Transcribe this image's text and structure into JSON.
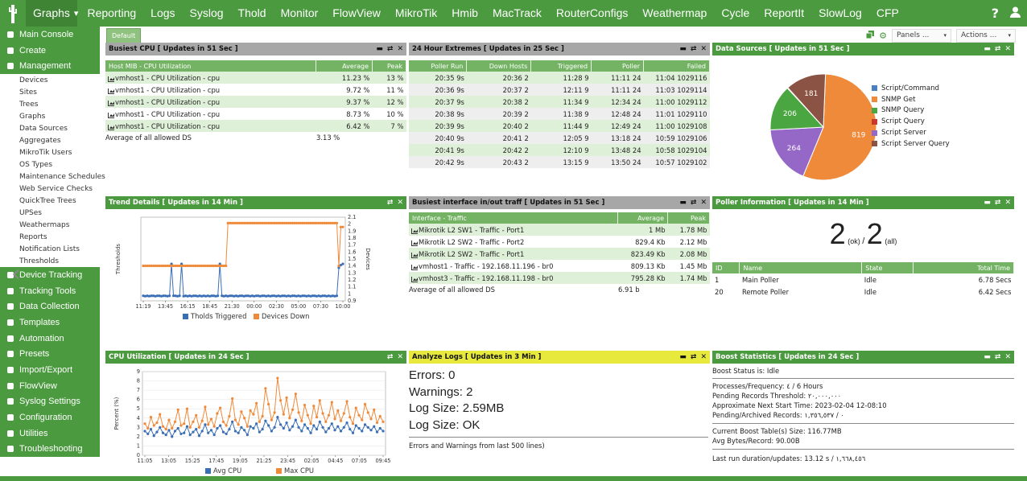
{
  "topnav": {
    "items": [
      "Graphs",
      "Reporting",
      "Logs",
      "Syslog",
      "Thold",
      "Monitor",
      "FlowView",
      "MikroTik",
      "Hmib",
      "MacTrack",
      "RouterConfigs",
      "Weathermap",
      "Cycle",
      "ReportIt",
      "SlowLog",
      "CFP"
    ],
    "help": "?"
  },
  "sidebar": {
    "top": [
      {
        "label": "Main Console",
        "icon": "home-icon"
      },
      {
        "label": "Create",
        "icon": "plus-icon"
      },
      {
        "label": "Management",
        "icon": "folder-icon"
      }
    ],
    "management_items": [
      "Devices",
      "Sites",
      "Trees",
      "Graphs",
      "Data Sources",
      "Aggregates",
      "MikroTik Users",
      "OS Types",
      "Maintenance Schedules",
      "Web Service Checks",
      "QuickTree Trees",
      "UPSes",
      "Weathermaps",
      "Reports",
      "Notification Lists",
      "Thresholds"
    ],
    "bottom": [
      {
        "label": "Device Tracking",
        "icon": "gear-icon"
      },
      {
        "label": "Tracking Tools",
        "icon": "wrench-icon"
      },
      {
        "label": "Data Collection",
        "icon": "database-icon"
      },
      {
        "label": "Templates",
        "icon": "template-icon"
      },
      {
        "label": "Automation",
        "icon": "robot-icon"
      },
      {
        "label": "Presets",
        "icon": "list-icon"
      },
      {
        "label": "Import/Export",
        "icon": "swap-icon"
      },
      {
        "label": "FlowView",
        "icon": "flow-icon"
      },
      {
        "label": "Syslog Settings",
        "icon": "gear-icon"
      },
      {
        "label": "Configuration",
        "icon": "sliders-icon"
      },
      {
        "label": "Utilities",
        "icon": "tools-icon"
      },
      {
        "label": "Troubleshooting",
        "icon": "bug-icon"
      }
    ]
  },
  "tab": {
    "label": "Default"
  },
  "toolbar": {
    "panels": "Panels ...",
    "actions": "Actions ..."
  },
  "cpu_panel": {
    "title": "Busiest CPU [ Updates in 51 Sec ]",
    "headers": [
      "Host MIB - CPU Utilization",
      "Average",
      "Peak"
    ],
    "rows": [
      [
        "vmhost1 - CPU Utilization - cpu",
        "11.23 %",
        "13 %"
      ],
      [
        "vmhost1 - CPU Utilization - cpu",
        "9.72 %",
        "11 %"
      ],
      [
        "vmhost1 - CPU Utilization - cpu",
        "9.37 %",
        "12 %"
      ],
      [
        "vmhost1 - CPU Utilization - cpu",
        "8.73 %",
        "10 %"
      ],
      [
        "vmhost1 - CPU Utilization - cpu",
        "6.42 %",
        "7 %"
      ]
    ],
    "avg_label": "Average of all allowed DS",
    "avg_value": "3.13 %"
  },
  "extremes_panel": {
    "title": "24 Hour Extremes [ Updates in 25 Sec ]",
    "headers": [
      "Poller Run",
      "Down Hosts",
      "Triggered",
      "Poller",
      "Failed"
    ],
    "rows": [
      [
        "20:35 9s",
        "20:36 2",
        "11:28 9",
        "11:11 24",
        "11:04 1029116"
      ],
      [
        "20:36 9s",
        "20:37 2",
        "12:11 9",
        "11:11 24",
        "11:03 1029114"
      ],
      [
        "20:37 9s",
        "20:38 2",
        "11:34 9",
        "12:34 24",
        "11:00 1029112"
      ],
      [
        "20:38 9s",
        "20:39 2",
        "11:38 9",
        "12:48 24",
        "11:01 1029110"
      ],
      [
        "20:39 9s",
        "20:40 2",
        "11:44 9",
        "12:49 24",
        "11:00 1029108"
      ],
      [
        "20:40 9s",
        "20:41 2",
        "12:05 9",
        "13:18 24",
        "10:59 1029106"
      ],
      [
        "20:41 9s",
        "20:42 2",
        "12:10 9",
        "13:48 24",
        "10:58 1029104"
      ],
      [
        "20:42 9s",
        "20:43 2",
        "13:15 9",
        "13:50 24",
        "10:57 1029102"
      ]
    ]
  },
  "datasources_panel": {
    "title": "Data Sources [ Updates in 51 Sec ]",
    "legend": [
      {
        "label": "Script/Command",
        "color": "#4a7fc1"
      },
      {
        "label": "SNMP Get",
        "color": "#ef8a3a"
      },
      {
        "label": "SNMP Query",
        "color": "#4aa640"
      },
      {
        "label": "Script Query",
        "color": "#c8382d"
      },
      {
        "label": "Script Server",
        "color": "#9567c6"
      },
      {
        "label": "Script Server Query",
        "color": "#8b5344"
      }
    ]
  },
  "trend_panel": {
    "title": "Trend Details [ Updates in 14 Min ]"
  },
  "interface_panel": {
    "title": "Busiest interface in/out traff [ Updates in 51 Sec ]",
    "headers": [
      "Interface - Traffic",
      "Average",
      "Peak"
    ],
    "rows": [
      [
        "Mikrotik L2 SW1 - Traffic - Port1",
        "1 Mb",
        "1.78 Mb"
      ],
      [
        "Mikrotik L2 SW2 - Traffic - Port2",
        "829.4 Kb",
        "2.12 Mb"
      ],
      [
        "Mikrotik L2 SW2 - Traffic - Port1",
        "823.49 Kb",
        "2.08 Mb"
      ],
      [
        "vmhost1 - Traffic - 192.168.11.196 - br0",
        "809.13 Kb",
        "1.45 Mb"
      ],
      [
        "vmhost3 - Traffic - 192.168.11.198 - br0",
        "795.28 Kb",
        "1.74 Mb"
      ]
    ],
    "avg_label": "Average of all allowed DS",
    "avg_value": "6.91 b"
  },
  "poller_panel": {
    "title": "Poller Information [ Updates in 14 Min ]",
    "ok_count": "2",
    "ok_label": "(ok)",
    "slash": "/",
    "all_count": "2",
    "all_label": "(all)",
    "headers": [
      "ID",
      "Name",
      "State",
      "Total Time"
    ],
    "rows": [
      [
        "1",
        "Main Poller",
        "Idle",
        "6.78 Secs"
      ],
      [
        "20",
        "Remote Poller",
        "Idle",
        "6.42 Secs"
      ]
    ]
  },
  "cpuutil_panel": {
    "title": "CPU Utilization [ Updates in 24 Sec ]"
  },
  "logs_panel": {
    "title": "Analyze Logs [ Updates in 3 Min ]",
    "lines": [
      "Errors: 0",
      "Warnings: 2",
      "Log Size: 2.59MB",
      "Log Size: OK"
    ],
    "footer": "Errors and Warnings from last 500 lines)"
  },
  "boost_panel": {
    "title": "Boost Statistics [ Updates in 24 Sec ]",
    "status": "Boost Status is: Idle",
    "group1": [
      "Processes/Frequency: ٤ / 6 Hours",
      "Pending Records Threshold: ٢٠,٠٠٠,٠٠٠",
      "Approximate Next Start Time: 2023-02-04 12-08:10",
      "Pending/Archived Records: ٠ / ١,٣٥٦,٥٣٧"
    ],
    "group2": [
      "Current Boost Table(s) Size: 116.77MB",
      "Avg Bytes/Record: 90.00B"
    ],
    "last_run": "Last run duration/updates: 13.12 s / ١,٦٦٨,٤٥٦"
  },
  "chart_data": [
    {
      "type": "pie",
      "categories": [
        "Script/Command",
        "SNMP Get",
        "SNMP Query",
        "Script Query",
        "Script Server",
        "Script Server Query"
      ],
      "values": [
        2,
        819,
        206,
        1,
        264,
        181
      ],
      "legend_position": "right"
    },
    {
      "type": "line",
      "x_ticks": [
        "11:19",
        "13:45",
        "16:15",
        "18:45",
        "21:30",
        "00:00",
        "02:30",
        "05:00",
        "07:30",
        "10:00"
      ],
      "ylabel": "Thresholds",
      "ylabel_right": "Devices",
      "y_right_ticks": [
        "0.9",
        "1",
        "1.1",
        "1.2",
        "1.3",
        "1.4",
        "1.5",
        "1.6",
        "1.7",
        "1.8",
        "1.9",
        "2",
        "2.1"
      ],
      "series": [
        {
          "name": "Tholds Triggered",
          "color": "#3b6fb5",
          "values": [
            0.13,
            0.12,
            0.13,
            0.12,
            0.13,
            0.13,
            0.12,
            0.13,
            0.13,
            0.12,
            0.13,
            0.13,
            0.12,
            0.13,
            0.95,
            0.13,
            0.13,
            0.12,
            0.13,
            0.95,
            0.12,
            0.13,
            0.12,
            0.13,
            0.12,
            0.13,
            0.13,
            0.12,
            0.13,
            0.12,
            0.13,
            0.12,
            0.13,
            0.12,
            0.13,
            0.13,
            0.12,
            0.13,
            0.95,
            0.13,
            0.12,
            0.13,
            0.12,
            0.13,
            0.13,
            0.12,
            0.13,
            0.12,
            0.13,
            0.13,
            0.12,
            0.13,
            0.13,
            0.12,
            0.13,
            0.12,
            0.13,
            0.13,
            0.12,
            0.13,
            0.13,
            0.12,
            0.13,
            0.12,
            0.13,
            0.13,
            0.12,
            0.13,
            0.12,
            0.13,
            0.13,
            0.12,
            0.13,
            0.12,
            0.13,
            0.13,
            0.12,
            0.13,
            0.12,
            0.13,
            0.13,
            0.12,
            0.13,
            0.12,
            0.13,
            0.13,
            0.12,
            0.13,
            0.12,
            0.13,
            0.13,
            0.12,
            0.13,
            0.12,
            0.13,
            0.12,
            0.13,
            0.85,
            0.92,
            0.95
          ]
        },
        {
          "name": "Devices Down",
          "color": "#ef8a3a",
          "values": [
            0.9,
            0.9,
            0.9,
            0.9,
            0.9,
            0.9,
            0.9,
            0.9,
            0.9,
            0.9,
            0.9,
            0.9,
            0.9,
            0.9,
            0.9,
            0.9,
            0.9,
            0.9,
            0.9,
            0.9,
            0.9,
            0.9,
            0.9,
            0.9,
            0.9,
            0.9,
            0.9,
            0.9,
            0.9,
            0.9,
            0.9,
            0.9,
            0.9,
            0.9,
            0.9,
            0.9,
            0.9,
            0.9,
            0.9,
            0.9,
            0.9,
            0.9,
            2,
            2,
            2,
            2,
            2,
            2,
            2,
            2,
            2,
            2,
            2,
            2,
            2,
            2,
            2,
            2,
            2,
            2,
            2,
            2,
            2,
            2,
            2,
            2,
            2,
            2,
            2,
            2,
            2,
            2,
            2,
            2,
            2,
            2,
            2,
            2,
            2,
            2,
            2,
            2,
            2,
            2,
            2,
            2,
            2,
            2,
            2,
            2,
            2,
            2,
            2,
            2,
            2,
            2,
            2,
            0.9,
            1.9,
            1.9
          ]
        }
      ]
    },
    {
      "type": "line",
      "x_ticks": [
        "11:05",
        "13:05",
        "15:25",
        "17:45",
        "19:05",
        "21:25",
        "23:45",
        "02:05",
        "04:45",
        "07:05",
        "09:45"
      ],
      "y_ticks": [
        "0",
        "1",
        "2",
        "3",
        "4",
        "5",
        "6",
        "7",
        "8",
        "9"
      ],
      "ylabel": "Percent (%)",
      "series": [
        {
          "name": "Avg CPU",
          "color": "#3b6fb5",
          "values": [
            2.6,
            2.3,
            2.8,
            2.1,
            2.5,
            3.0,
            2.4,
            2.2,
            2.7,
            2.0,
            2.6,
            2.9,
            2.3,
            2.4,
            3.1,
            2.2,
            2.5,
            2.8,
            2.1,
            2.6,
            3.3,
            2.4,
            2.7,
            2.2,
            2.9,
            3.2,
            2.5,
            2.3,
            2.8,
            3.6,
            2.6,
            2.4,
            3.0,
            2.7,
            2.2,
            3.1,
            2.9,
            3.4,
            2.5,
            2.8,
            3.7,
            3.2,
            2.6,
            3.0,
            4.1,
            3.3,
            2.9,
            3.5,
            2.7,
            3.1,
            3.8,
            3.0,
            2.6,
            3.3,
            2.9,
            2.4,
            3.2,
            2.8,
            3.6,
            3.0,
            2.5,
            2.9,
            3.4,
            2.7,
            3.1,
            2.6,
            3.0,
            3.5,
            2.8,
            2.4,
            3.2,
            2.9,
            2.6,
            3.3,
            3.0,
            2.7,
            3.1,
            2.5,
            2.9,
            2.6
          ]
        },
        {
          "name": "Max CPU",
          "color": "#ef8a3a",
          "values": [
            3.4,
            2.9,
            4.1,
            3.2,
            3.5,
            4.4,
            3.1,
            2.8,
            3.8,
            2.9,
            3.6,
            4.9,
            3.2,
            3.4,
            5.0,
            3.0,
            3.6,
            4.3,
            3.0,
            3.7,
            5.2,
            3.3,
            3.9,
            3.1,
            4.5,
            5.1,
            3.6,
            3.2,
            4.2,
            6.1,
            3.8,
            3.3,
            4.7,
            4.0,
            3.1,
            4.8,
            4.4,
            5.6,
            3.6,
            4.2,
            7.2,
            5.5,
            3.8,
            4.6,
            8.3,
            5.9,
            4.4,
            6.2,
            4.0,
            4.9,
            6.6,
            4.6,
            3.7,
            5.4,
            4.3,
            3.4,
            5.3,
            4.1,
            5.9,
            4.5,
            3.6,
            4.3,
            5.7,
            3.9,
            4.8,
            3.7,
            4.5,
            5.8,
            4.1,
            3.4,
            5.1,
            4.3,
            3.8,
            5.5,
            4.6,
            3.9,
            4.9,
            3.5,
            4.2,
            3.6
          ]
        }
      ]
    }
  ]
}
